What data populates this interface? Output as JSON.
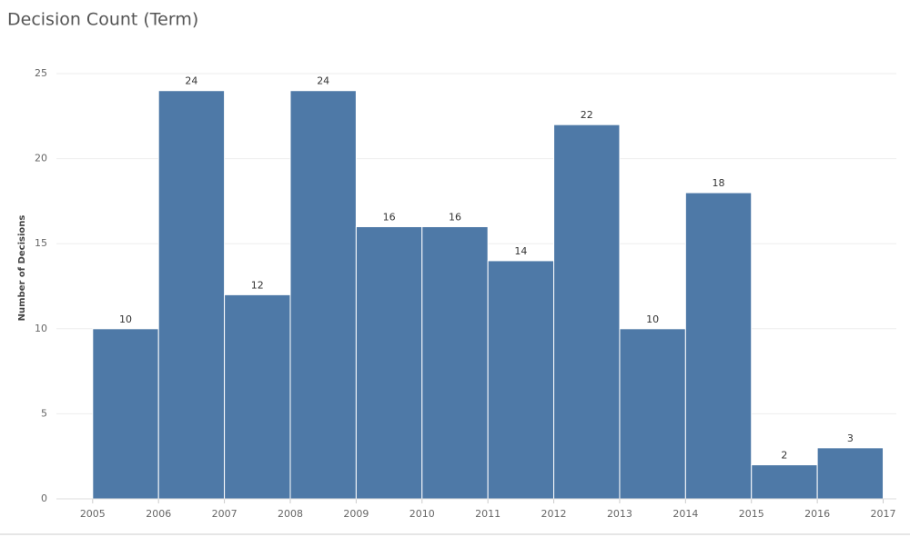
{
  "chart_data": {
    "type": "histogram",
    "title": "Decision Count (Term)",
    "y_label": "Number of Decisions",
    "bins": [
      2005,
      2006,
      2007,
      2008,
      2009,
      2010,
      2011,
      2012,
      2013,
      2014,
      2015,
      2016,
      2017
    ],
    "values": [
      10,
      24,
      12,
      24,
      16,
      16,
      14,
      22,
      10,
      18,
      2,
      3
    ],
    "color": "#4e79a7",
    "xlim": [
      2004.45,
      2017.2
    ],
    "xticks": [
      2005,
      2006,
      2007,
      2008,
      2009,
      2010,
      2011,
      2012,
      2013,
      2014,
      2015,
      2016,
      2017
    ],
    "ylim": [
      0,
      26
    ],
    "yticks": [
      0,
      5,
      10,
      15,
      20,
      25
    ],
    "grid": true
  }
}
